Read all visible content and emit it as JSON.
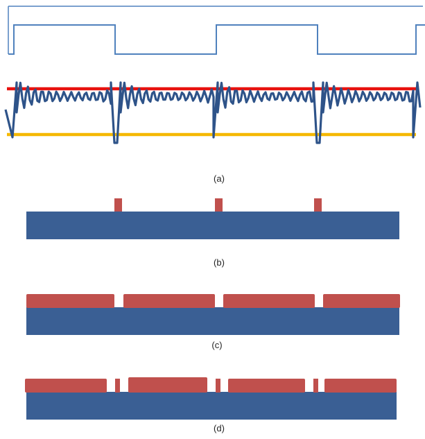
{
  "panels": [
    {
      "id": "a",
      "caption": "(a)"
    },
    {
      "id": "b",
      "caption": "(b)"
    },
    {
      "id": "c",
      "caption": "(c)"
    },
    {
      "id": "d",
      "caption": "(d)"
    }
  ],
  "colors": {
    "square_wave": "#4f81bd",
    "ringing_signal": "#2e5389",
    "upper_threshold": "#e8120f",
    "lower_threshold": "#f5b800",
    "substrate": "#3a5f94",
    "red_layer": "#c0504d"
  }
}
